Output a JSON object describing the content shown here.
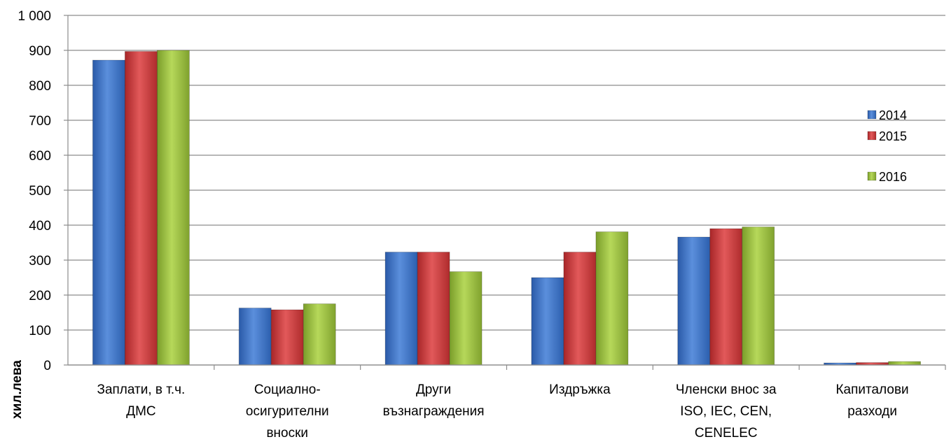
{
  "chart_data": {
    "type": "bar",
    "title": "",
    "xlabel": "",
    "ylabel": "хил.лева",
    "ylim": [
      0,
      1000
    ],
    "yticks": [
      "0",
      "100",
      "200",
      "300",
      "400",
      "500",
      "600",
      "700",
      "800",
      "900",
      "1 000"
    ],
    "grid": true,
    "legend_position": "right",
    "categories": [
      [
        "Заплати, в т.ч.",
        "ДМС"
      ],
      [
        "Социално-",
        "осигурителни",
        "вноски"
      ],
      [
        "Други",
        "възнаграждения"
      ],
      [
        "Издръжка"
      ],
      [
        "Членски внос за",
        "ISO, IEC, CEN,",
        "CENELEC"
      ],
      [
        "Капиталови",
        "разходи"
      ]
    ],
    "series": [
      {
        "name": "2014",
        "color": "#3a6fc4",
        "values": [
          872,
          163,
          323,
          250,
          366,
          6
        ]
      },
      {
        "name": "2015",
        "color": "#c8383a",
        "values": [
          897,
          158,
          323,
          323,
          390,
          7
        ]
      },
      {
        "name": "2016",
        "color": "#96ba3c",
        "values": [
          900,
          175,
          267,
          381,
          395,
          10
        ]
      }
    ]
  }
}
